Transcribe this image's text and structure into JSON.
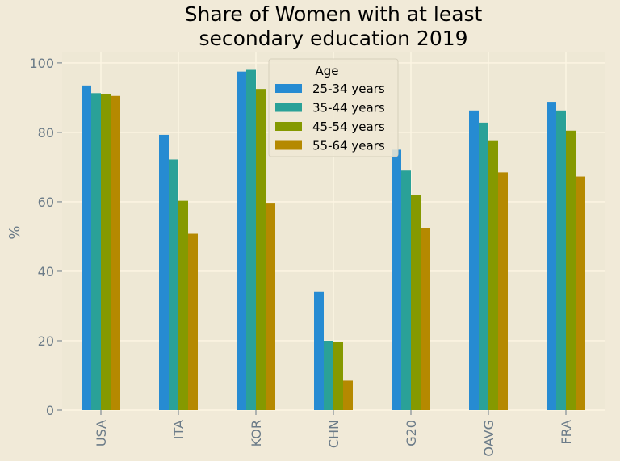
{
  "chart_data": {
    "type": "bar",
    "title_lines": [
      "Share of Women with at least",
      "secondary education 2019"
    ],
    "ylabel": "%",
    "xlabel": "",
    "ylim": [
      0,
      103
    ],
    "yticks": [
      0,
      20,
      40,
      60,
      80,
      100
    ],
    "grid": true,
    "legend": {
      "title": "Age",
      "placement": "top-center"
    },
    "categories": [
      "USA",
      "ITA",
      "KOR",
      "CHN",
      "G20",
      "OAVG",
      "FRA"
    ],
    "series": [
      {
        "name": "25-34 years",
        "color": "#268bd2",
        "values": [
          93.5,
          79.3,
          97.5,
          34.0,
          75.0,
          86.3,
          88.8
        ]
      },
      {
        "name": "35-44 years",
        "color": "#2aa198",
        "values": [
          91.3,
          72.2,
          98.0,
          20.0,
          69.0,
          82.8,
          86.3
        ]
      },
      {
        "name": "45-54 years",
        "color": "#859900",
        "values": [
          91.0,
          60.3,
          92.5,
          19.6,
          62.0,
          77.5,
          80.5
        ]
      },
      {
        "name": "55-64 years",
        "color": "#b58900",
        "values": [
          90.5,
          50.8,
          59.5,
          8.5,
          52.5,
          68.5,
          67.3
        ]
      }
    ]
  }
}
